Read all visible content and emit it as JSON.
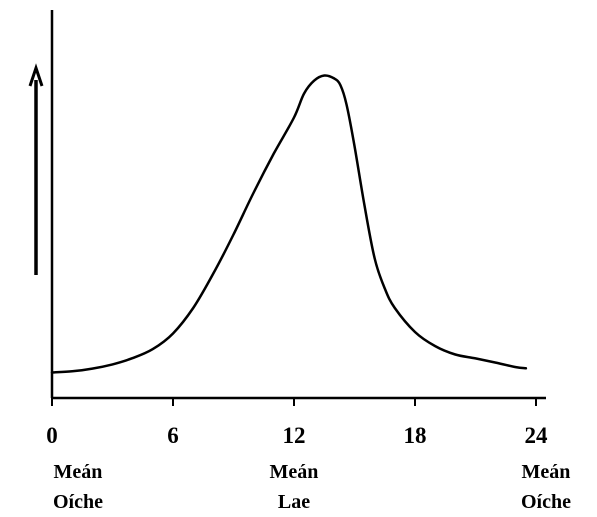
{
  "chart_data": {
    "type": "line",
    "title": "",
    "xlabel": "",
    "ylabel": "",
    "xlim": [
      0,
      24
    ],
    "x_ticks": [
      0,
      6,
      12,
      18,
      24
    ],
    "y_ticks": [],
    "grid": false,
    "legend": "none",
    "y_arrow": true,
    "sub_labels": [
      {
        "x": 0,
        "line1": "Meán",
        "line2": "Oíche"
      },
      {
        "x": 12,
        "line1": "Meán",
        "line2": "Lae"
      },
      {
        "x": 24,
        "line1": "Meán",
        "line2": "Oíche"
      }
    ],
    "series": [
      {
        "color": "#000000",
        "x": [
          0,
          1,
          2,
          3,
          4,
          5,
          6,
          7,
          8,
          9,
          10,
          11,
          12,
          12.5,
          13,
          13.5,
          14,
          14.3,
          14.6,
          15,
          15.5,
          16,
          16.5,
          17,
          18,
          19,
          20,
          21,
          22,
          23,
          23.5
        ],
        "y": [
          0.5,
          0.9,
          1.8,
          3.2,
          5.3,
          8.3,
          13.5,
          22.0,
          33.5,
          46.5,
          60.5,
          73.5,
          85.5,
          93.5,
          97.8,
          99.5,
          98.5,
          96.3,
          90.0,
          76.0,
          56.0,
          38.5,
          28.5,
          22.0,
          14.0,
          9.3,
          6.5,
          5.2,
          3.8,
          2.3,
          1.9
        ]
      }
    ]
  }
}
